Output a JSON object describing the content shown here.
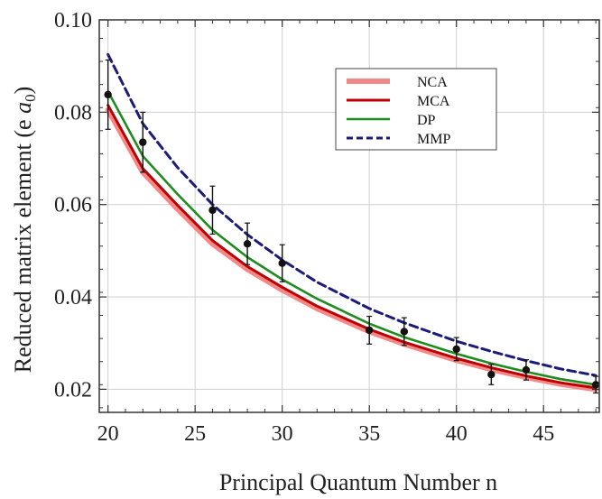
{
  "chart_data": {
    "type": "line",
    "xlabel": "Principal Quantum Number n",
    "ylabel_main": "Reduced matrix element (e ",
    "ylabel_unit": "a",
    "ylabel_sub": "0",
    "ylabel_close": ")",
    "xlim": [
      19.5,
      48.2
    ],
    "ylim": [
      0.015,
      0.1
    ],
    "xticks": [
      20,
      25,
      30,
      35,
      40,
      45
    ],
    "yticks": [
      0.02,
      0.04,
      0.06,
      0.08,
      0.1
    ],
    "ytick_labels": [
      "0.02",
      "0.04",
      "0.06",
      "0.08",
      "0.10"
    ],
    "grid": true,
    "legend_position": "top-right",
    "x": [
      20,
      22,
      24,
      26,
      28,
      30,
      32,
      35,
      37,
      40,
      42,
      44,
      46,
      48
    ],
    "series": [
      {
        "name": "NCA",
        "color": "#f08a8a",
        "style": "solid",
        "values": [
          0.0805,
          0.067,
          0.059,
          0.0515,
          0.046,
          0.0415,
          0.0375,
          0.0325,
          0.0298,
          0.0263,
          0.0243,
          0.0226,
          0.0211,
          0.02
        ]
      },
      {
        "name": "MCA",
        "color": "#c00000",
        "style": "solid",
        "values": [
          0.0815,
          0.0678,
          0.0598,
          0.0522,
          0.0466,
          0.0421,
          0.038,
          0.033,
          0.0302,
          0.0267,
          0.0247,
          0.0229,
          0.0214,
          0.0203
        ]
      },
      {
        "name": "DP",
        "color": "#1e8c1e",
        "style": "solid",
        "values": [
          0.0845,
          0.0705,
          0.0622,
          0.0545,
          0.0486,
          0.0438,
          0.0396,
          0.0342,
          0.0313,
          0.0277,
          0.0256,
          0.0238,
          0.0222,
          0.021
        ]
      },
      {
        "name": "MMP",
        "color": "#1c1c78",
        "style": "dashed",
        "values": [
          0.0925,
          0.0775,
          0.068,
          0.06,
          0.0535,
          0.048,
          0.0432,
          0.0375,
          0.0344,
          0.0304,
          0.0282,
          0.0262,
          0.0244,
          0.023
        ]
      }
    ],
    "data_points": [
      {
        "x": 20,
        "y": 0.0838,
        "err": 0.0075
      },
      {
        "x": 22,
        "y": 0.0735,
        "err": 0.0065
      },
      {
        "x": 26,
        "y": 0.0588,
        "err": 0.0052
      },
      {
        "x": 28,
        "y": 0.0515,
        "err": 0.0045
      },
      {
        "x": 30,
        "y": 0.0473,
        "err": 0.004
      },
      {
        "x": 35,
        "y": 0.0328,
        "err": 0.003
      },
      {
        "x": 37,
        "y": 0.0325,
        "err": 0.003
      },
      {
        "x": 40,
        "y": 0.0287,
        "err": 0.0025
      },
      {
        "x": 42,
        "y": 0.0232,
        "err": 0.0022
      },
      {
        "x": 44,
        "y": 0.0242,
        "err": 0.0022
      },
      {
        "x": 48,
        "y": 0.021,
        "err": 0.0018
      }
    ]
  }
}
